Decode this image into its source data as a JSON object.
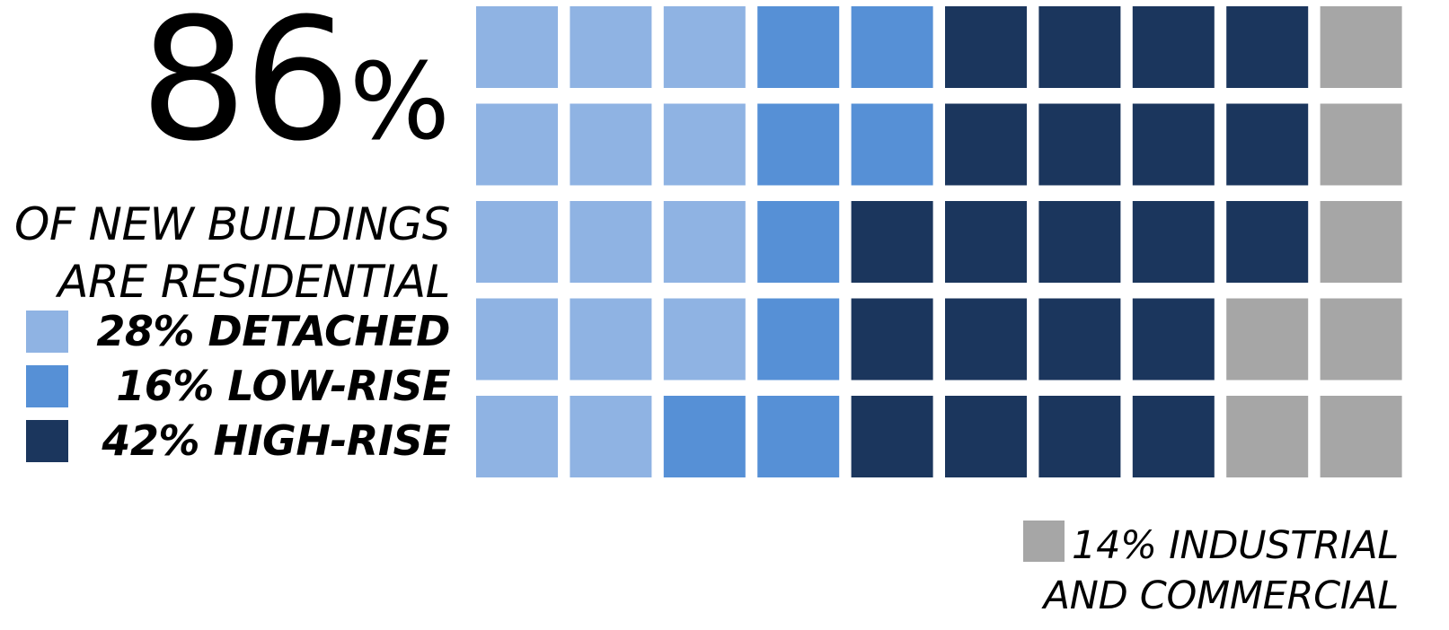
{
  "headline": {
    "value": "86",
    "unit": "%"
  },
  "subtitle": [
    "OF NEW BUILDINGS",
    "ARE RESIDENTIAL"
  ],
  "colors": {
    "detached": "#8fb3e3",
    "low_rise": "#5690d6",
    "high_rise": "#1b365d",
    "industrial_commercial": "#a6a6a6"
  },
  "legend": [
    {
      "label": "28% DETACHED",
      "category": "detached"
    },
    {
      "label": "16% LOW-RISE",
      "category": "low_rise"
    },
    {
      "label": "42% HIGH-RISE",
      "category": "high_rise"
    }
  ],
  "other_note": {
    "lines": [
      "14% INDUSTRIAL",
      "AND COMMERCIAL"
    ],
    "category": "industrial_commercial"
  },
  "chart_data": {
    "type": "waffle",
    "rows": 5,
    "columns": 10,
    "total_units": 50,
    "categories": [
      "detached",
      "low_rise",
      "high_rise",
      "industrial_commercial"
    ],
    "percentages": {
      "detached": 28,
      "low_rise": 16,
      "high_rise": 42,
      "industrial_commercial": 14
    },
    "units_per_row": [
      {
        "detached": 3,
        "low_rise": 2,
        "high_rise": 4,
        "industrial_commercial": 1
      },
      {
        "detached": 3,
        "low_rise": 2,
        "high_rise": 4,
        "industrial_commercial": 1
      },
      {
        "detached": 3,
        "low_rise": 1,
        "high_rise": 5,
        "industrial_commercial": 1
      },
      {
        "detached": 3,
        "low_rise": 1,
        "high_rise": 4,
        "industrial_commercial": 2
      },
      {
        "detached": 2,
        "low_rise": 2,
        "high_rise": 4,
        "industrial_commercial": 2
      }
    ]
  }
}
